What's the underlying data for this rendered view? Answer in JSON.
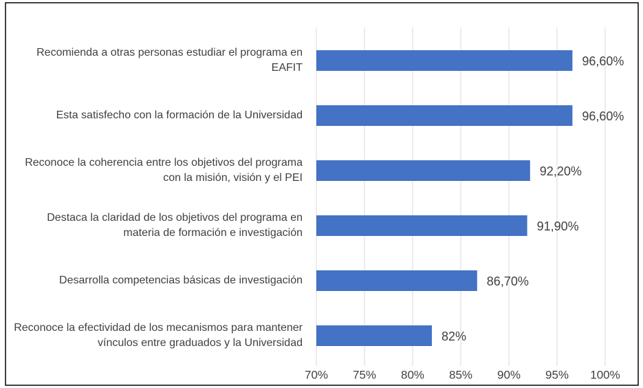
{
  "chart_data": {
    "type": "bar",
    "orientation": "horizontal",
    "categories": [
      "Recomienda a otras personas estudiar el programa en EAFIT",
      "Esta satisfecho con la formación de la Universidad",
      "Reconoce la coherencia entre los objetivos del programa con la misión, visión y el PEI",
      "Destaca la claridad de los objetivos del programa en materia de formación e investigación",
      "Desarrolla competencias básicas de investigación",
      "Reconoce la efectividad de los mecanismos para mantener vínculos entre graduados y la Universidad"
    ],
    "values": [
      96.6,
      96.6,
      92.2,
      91.9,
      86.7,
      82
    ],
    "value_labels": [
      "96,60%",
      "96,60%",
      "92,20%",
      "91,90%",
      "86,70%",
      "82%"
    ],
    "color": "#4472c4",
    "xlim": [
      70,
      100
    ],
    "xticks": [
      {
        "value": 70,
        "label": "70%"
      },
      {
        "value": 75,
        "label": "75%"
      },
      {
        "value": 80,
        "label": "80%"
      },
      {
        "value": 85,
        "label": "85%"
      },
      {
        "value": 90,
        "label": "90%"
      },
      {
        "value": 95,
        "label": "95%"
      },
      {
        "value": 100,
        "label": "100%"
      }
    ],
    "grid": true
  }
}
